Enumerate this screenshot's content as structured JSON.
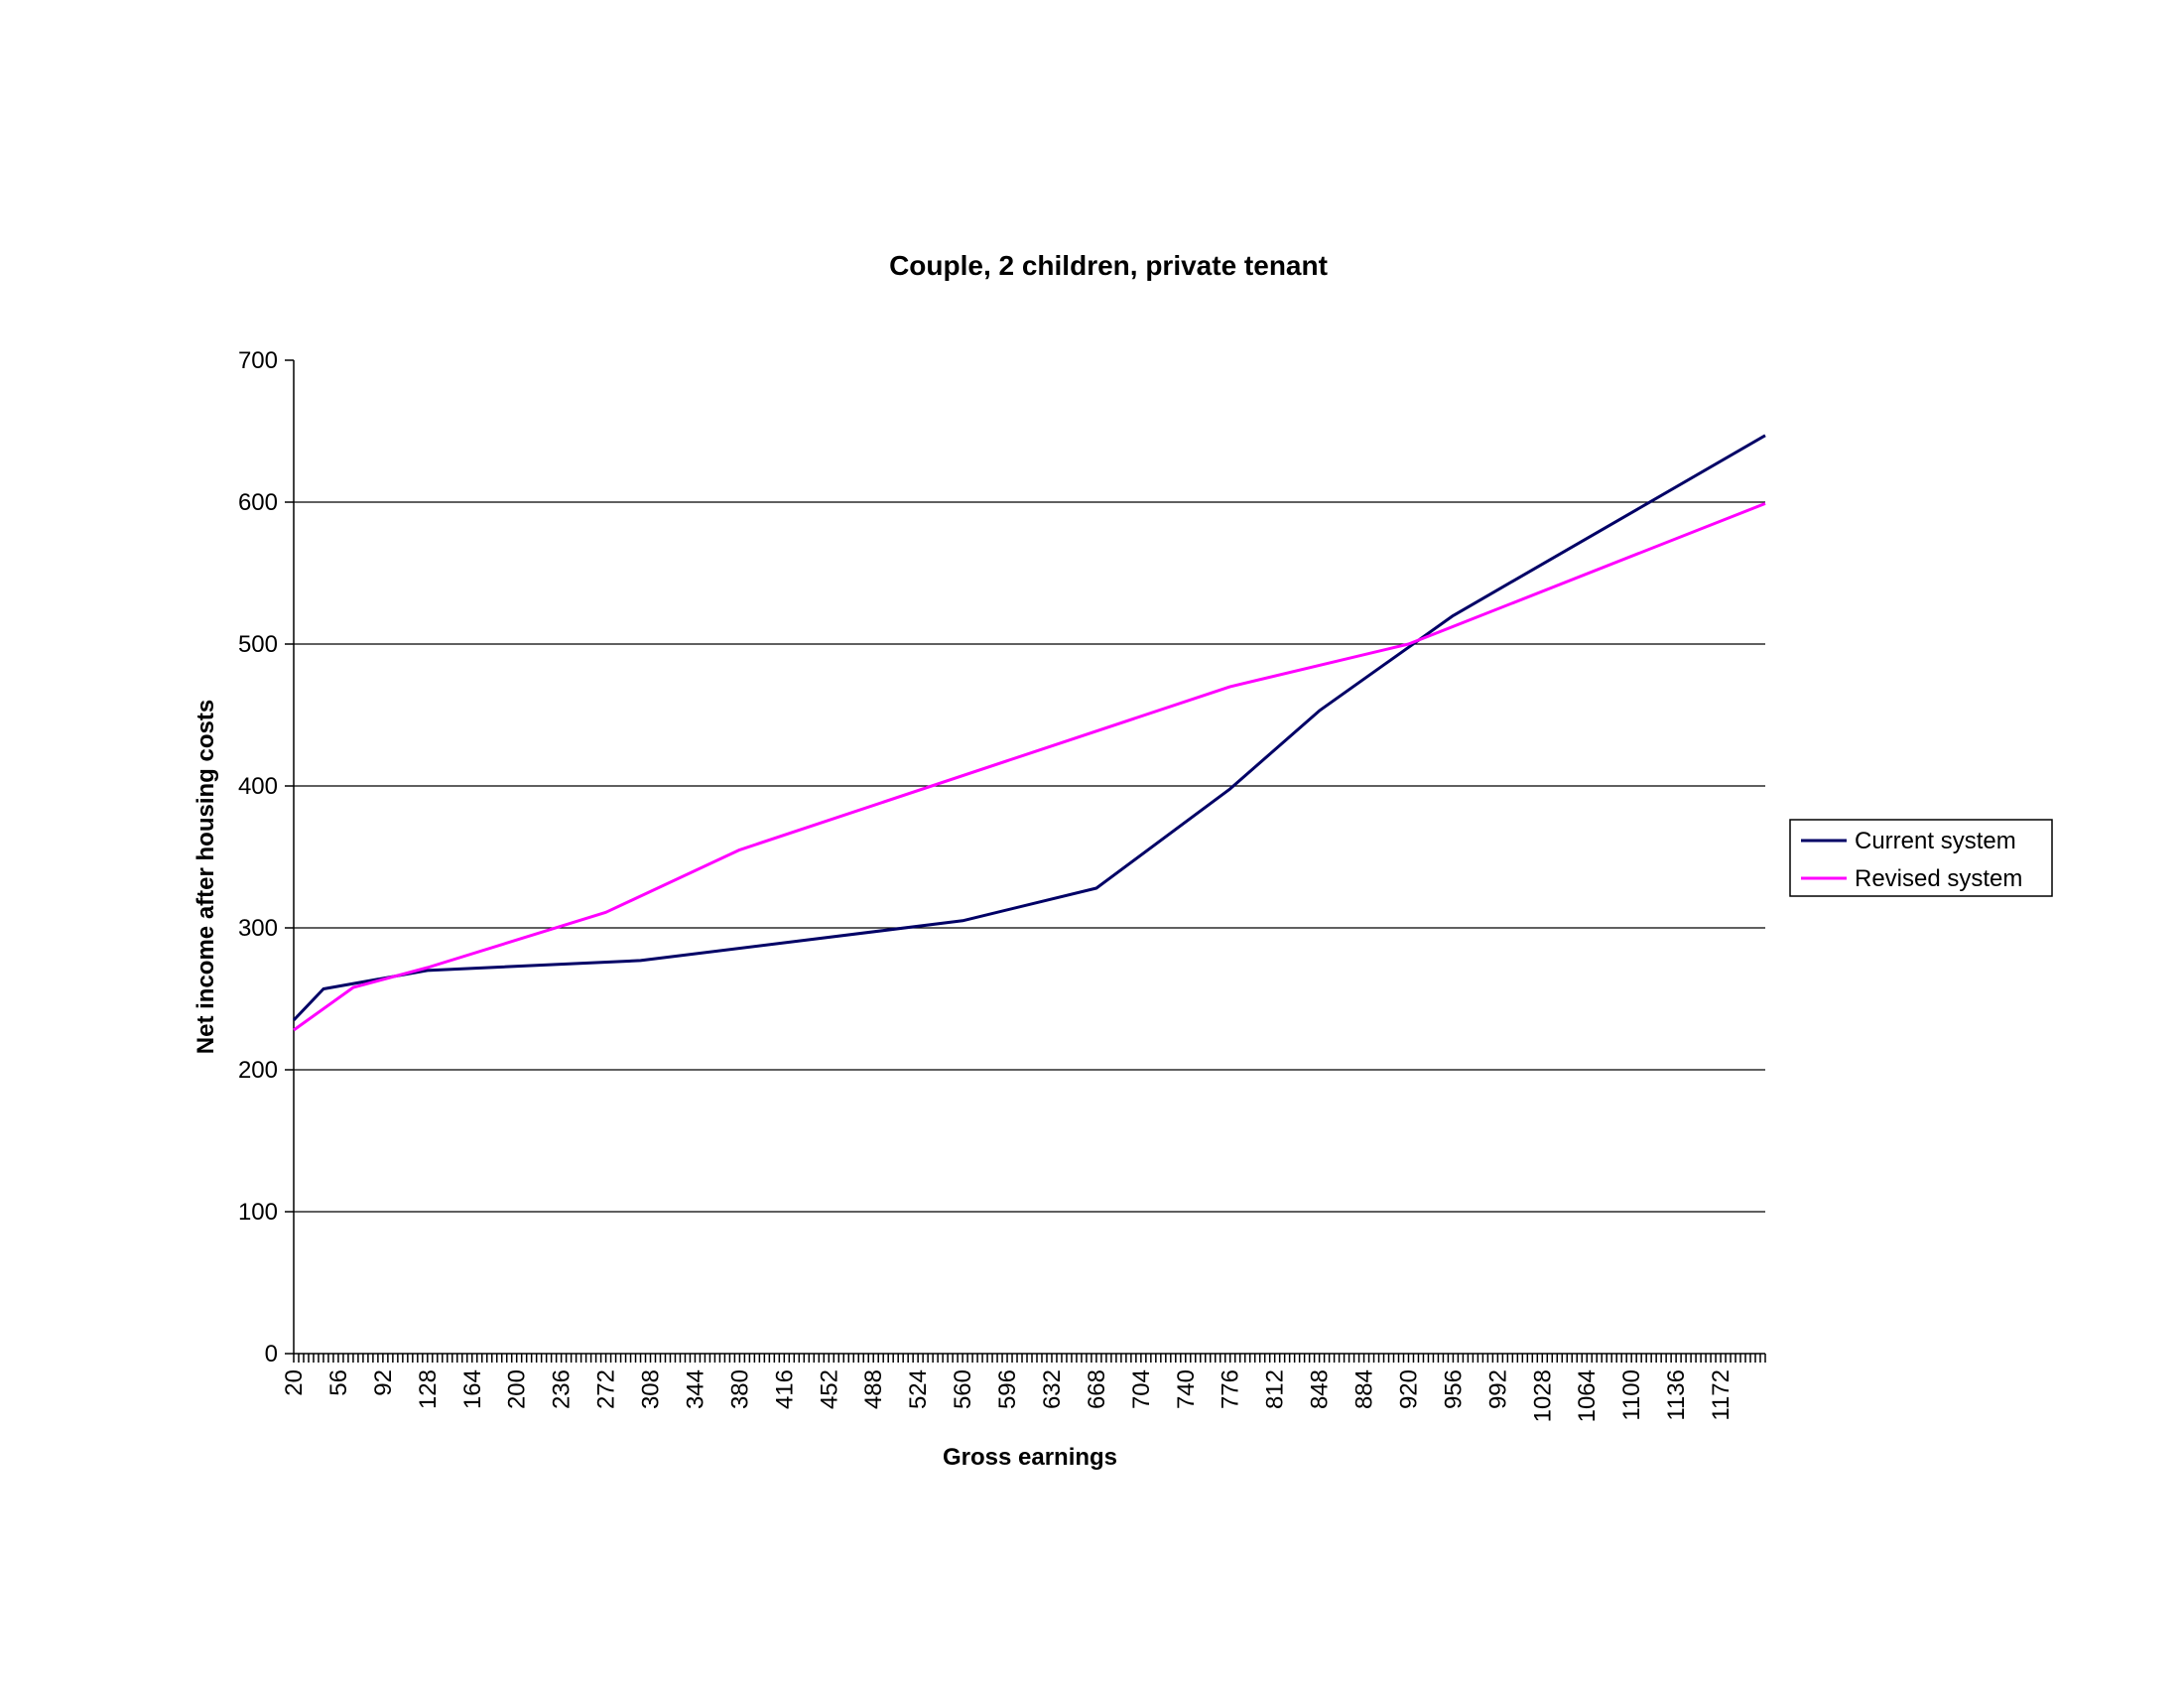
{
  "chart_data": {
    "type": "line",
    "title": "Couple, 2 children, private tenant",
    "xlabel": "Gross earnings",
    "ylabel": "Net income after housing costs",
    "ylim": [
      0,
      700
    ],
    "yticks": [
      0,
      100,
      200,
      300,
      400,
      500,
      600,
      700
    ],
    "xlim": [
      20,
      1208
    ],
    "xticks": [
      20,
      56,
      92,
      128,
      164,
      200,
      236,
      272,
      308,
      344,
      380,
      416,
      452,
      488,
      524,
      560,
      596,
      632,
      668,
      704,
      740,
      776,
      812,
      848,
      884,
      920,
      956,
      992,
      1028,
      1064,
      1100,
      1136,
      1172
    ],
    "x_step": 4,
    "grid": "horizontal",
    "legend_position": "right",
    "series": [
      {
        "name": "Current system",
        "color": "#000066",
        "points": [
          [
            20,
            235
          ],
          [
            44,
            257
          ],
          [
            128,
            270
          ],
          [
            300,
            277
          ],
          [
            560,
            305
          ],
          [
            668,
            328
          ],
          [
            776,
            398
          ],
          [
            848,
            453
          ],
          [
            956,
            520
          ],
          [
            1208,
            647
          ]
        ]
      },
      {
        "name": "Revised system",
        "color": "#ff00ff",
        "points": [
          [
            20,
            228
          ],
          [
            68,
            258
          ],
          [
            128,
            272
          ],
          [
            272,
            311
          ],
          [
            380,
            355
          ],
          [
            776,
            470
          ],
          [
            920,
            500
          ],
          [
            1208,
            599
          ]
        ]
      }
    ]
  }
}
